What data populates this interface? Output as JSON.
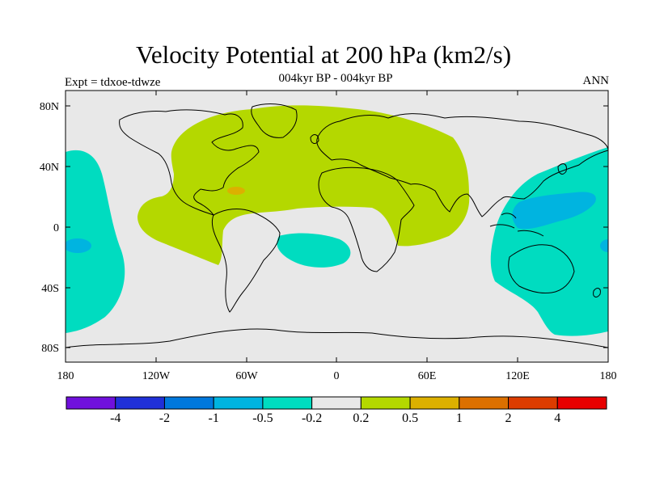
{
  "header": {
    "title": "Velocity Potential at 200 hPa (km2/s)",
    "subtitle": "004kyr BP - 004kyr BP",
    "left_label": "Expt = tdxoe-tdwze",
    "right_label": "ANN"
  },
  "axes": {
    "lat_ticks": [
      "80N",
      "40N",
      "0",
      "40S",
      "80S"
    ],
    "lon_ticks": [
      "180",
      "120W",
      "60W",
      "0",
      "60E",
      "120E",
      "180"
    ]
  },
  "colorbar": {
    "colors": [
      "#7010dc",
      "#2030d8",
      "#0078dc",
      "#00b4e0",
      "#00dcc0",
      "#e8e8e8",
      "#b4d800",
      "#dcb000",
      "#dc7000",
      "#dc3c00",
      "#e80000"
    ],
    "labels": [
      "-4",
      "-2",
      "-1",
      "-0.5",
      "-0.2",
      "0.2",
      "0.5",
      "1",
      "2",
      "4"
    ]
  },
  "field_colors": {
    "background": "#e8e8e8",
    "positive_weak": "#b4d800",
    "positive_mid": "#dcb000",
    "negative_weak": "#00dcc0",
    "negative_mid": "#00b4e0"
  }
}
